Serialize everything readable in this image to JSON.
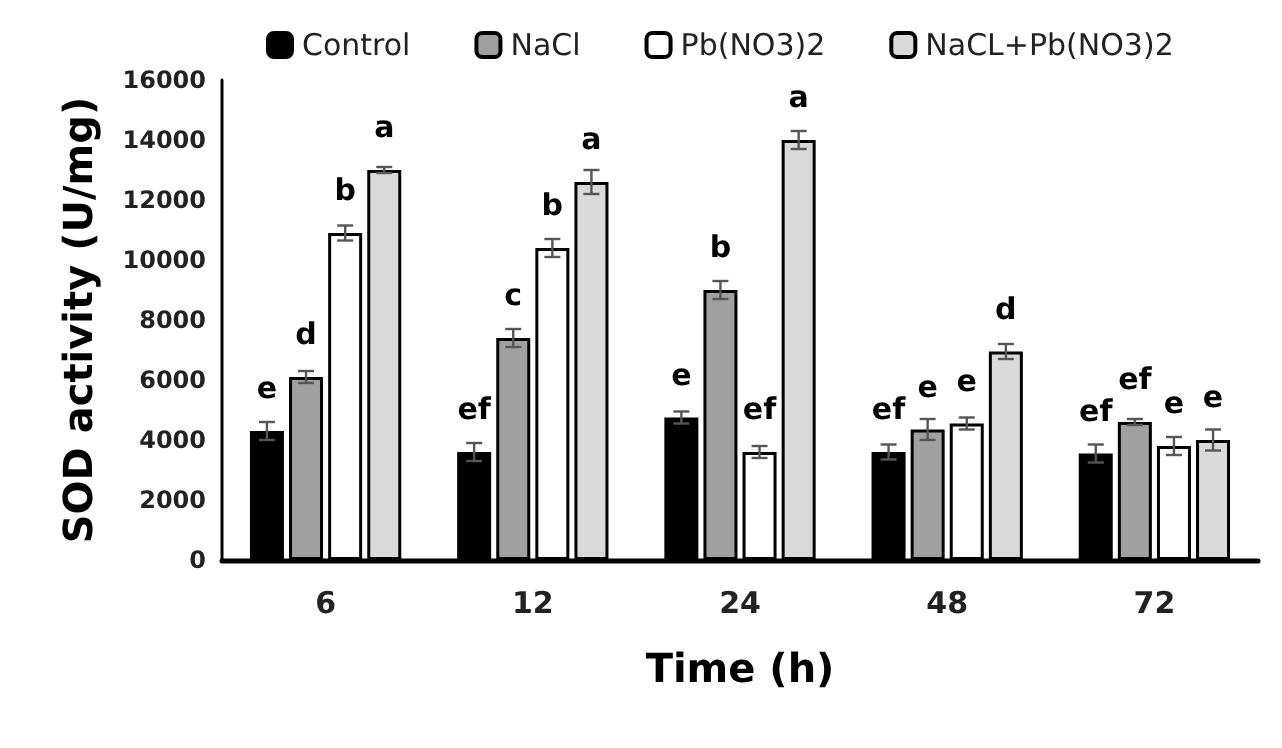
{
  "chart_data": {
    "type": "bar",
    "xlabel": "Time (h)",
    "ylabel": "SOD activity (U/mg)",
    "categories": [
      "6",
      "12",
      "24",
      "48",
      "72"
    ],
    "series": [
      {
        "name": "Control",
        "color": "#000000",
        "values": [
          4300,
          3600,
          4750,
          3600,
          3550
        ],
        "errors": [
          300,
          300,
          200,
          250,
          300
        ],
        "value_labels": [
          "e",
          "ef",
          "e",
          "ef",
          "ef"
        ]
      },
      {
        "name": "NaCl",
        "color": "#a0a0a0",
        "values": [
          6100,
          7400,
          9000,
          4350,
          4600
        ],
        "errors": [
          200,
          300,
          300,
          350,
          100
        ],
        "value_labels": [
          "d",
          "c",
          "b",
          "e",
          "ef"
        ]
      },
      {
        "name": "Pb(NO3)2",
        "color": "#ffffff",
        "values": [
          10900,
          10400,
          3600,
          4550,
          3800
        ],
        "errors": [
          250,
          300,
          200,
          200,
          300
        ],
        "value_labels": [
          "b",
          "b",
          "ef",
          "e",
          "e"
        ]
      },
      {
        "name": "NaCL+Pb(NO3)2",
        "color": "#d9d9d9",
        "values": [
          13000,
          12600,
          14000,
          6950,
          4000
        ],
        "errors": [
          100,
          400,
          300,
          250,
          350
        ],
        "value_labels": [
          "a",
          "a",
          "a",
          "d",
          "e"
        ]
      }
    ],
    "ylim": [
      0,
      16000
    ],
    "yticks": [
      0,
      2000,
      4000,
      6000,
      8000,
      10000,
      12000,
      14000,
      16000
    ],
    "grid": false,
    "legend": "top"
  }
}
